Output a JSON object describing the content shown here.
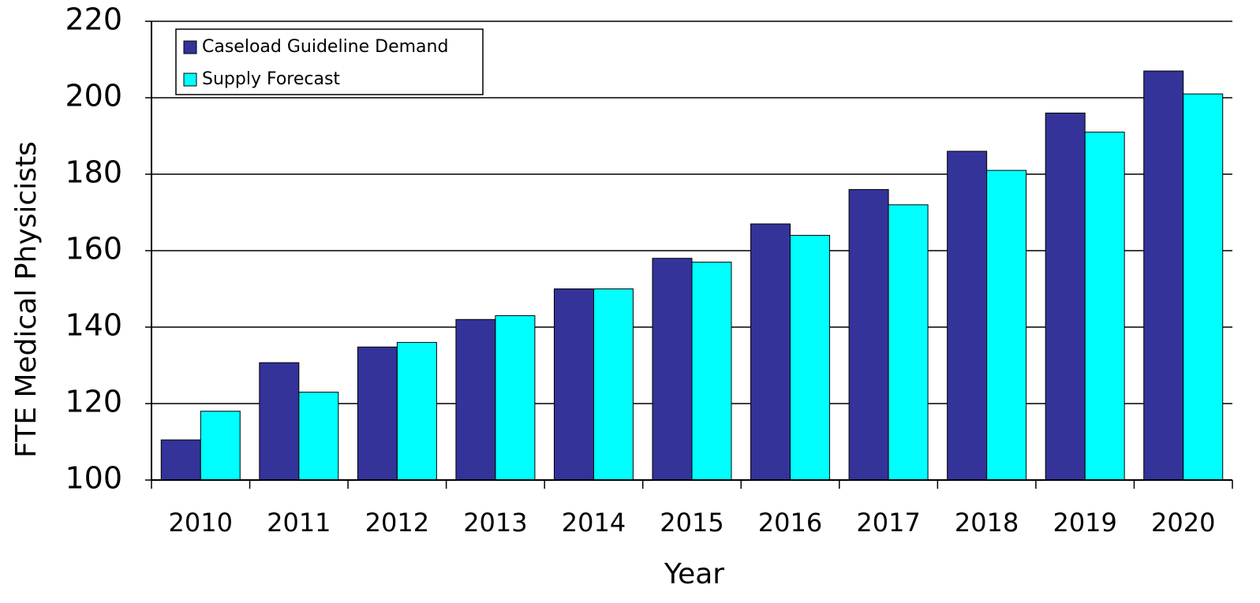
{
  "chart_data": {
    "type": "bar",
    "x_label": "Year",
    "y_label": "FTE Medical Physicists",
    "categories": [
      "2010",
      "2011",
      "2012",
      "2013",
      "2014",
      "2015",
      "2016",
      "2017",
      "2018",
      "2019",
      "2020"
    ],
    "series": [
      {
        "name": "Caseload Guideline Demand",
        "color": "#333399",
        "values": [
          110.5,
          130.7,
          134.8,
          142,
          150,
          158,
          167,
          176,
          186,
          196,
          207
        ]
      },
      {
        "name": "Supply Forecast",
        "color": "#00ffff",
        "values": [
          118,
          123,
          136,
          143,
          150,
          157,
          164,
          172,
          181,
          191,
          201
        ]
      }
    ],
    "ylim": [
      100,
      220
    ],
    "yticks": [
      100,
      120,
      140,
      160,
      180,
      200,
      220
    ],
    "grid": true,
    "legend": "upper left"
  }
}
